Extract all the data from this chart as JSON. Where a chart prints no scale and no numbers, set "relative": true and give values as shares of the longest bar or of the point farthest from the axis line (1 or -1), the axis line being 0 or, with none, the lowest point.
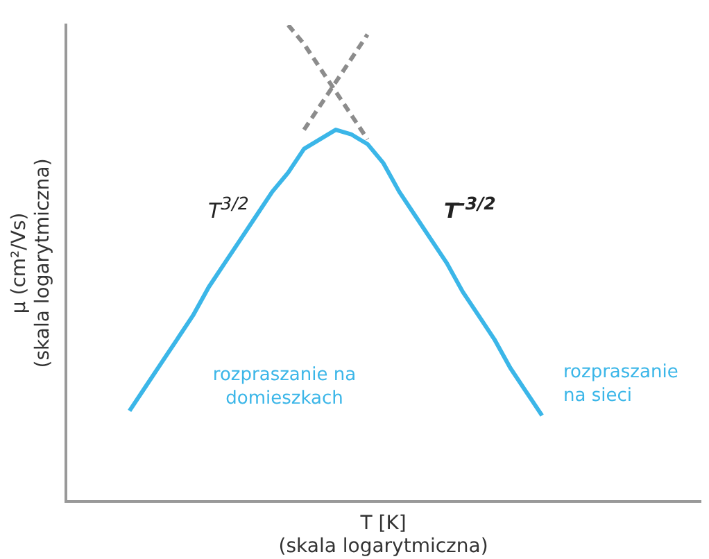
{
  "chart_data": {
    "type": "line",
    "relative": true,
    "xlabel": "T [K]\n(skala logarytmiczna)",
    "ylabel": "μ (cm²/Vs)\n(skala logarytmiczna)",
    "categories": [
      null,
      null,
      null,
      null,
      null,
      null,
      null,
      null,
      null,
      null,
      null,
      null,
      null,
      null,
      null,
      null,
      null,
      null,
      null,
      null,
      null,
      null,
      null,
      null,
      null,
      null,
      null,
      null,
      null,
      null,
      null,
      null,
      null,
      null,
      null,
      null,
      null,
      null,
      null,
      null,
      null
    ],
    "series": [
      {
        "color": "#3bb6e8",
        "line_style": "solid",
        "values": [
          null,
          null,
          null,
          null,
          0.19,
          0.24,
          0.29,
          0.34,
          0.39,
          0.45,
          0.5,
          0.55,
          0.6,
          0.65,
          0.69,
          0.74,
          0.76,
          0.78,
          0.77,
          0.75,
          0.71,
          0.65,
          0.6,
          0.55,
          0.5,
          0.44,
          0.39,
          0.34,
          0.28,
          0.23,
          0.18,
          null,
          null,
          null,
          null,
          null,
          null,
          null,
          null,
          null,
          null
        ]
      },
      {
        "color": "#8c8c8c",
        "line_style": "dashed",
        "values": [
          null,
          null,
          null,
          null,
          null,
          null,
          null,
          null,
          null,
          null,
          null,
          null,
          null,
          null,
          1.0,
          0.96,
          0.91,
          0.86,
          0.81,
          0.76,
          null,
          null,
          null,
          null,
          null,
          null,
          null,
          null,
          null,
          null,
          null,
          null,
          null,
          null,
          null,
          null,
          null,
          null,
          null,
          null,
          null
        ]
      },
      {
        "color": "#8c8c8c",
        "line_style": "dashed",
        "values": [
          null,
          null,
          null,
          null,
          null,
          null,
          null,
          null,
          null,
          null,
          null,
          null,
          null,
          null,
          null,
          0.78,
          0.83,
          0.88,
          0.93,
          0.98,
          null,
          null,
          null,
          null,
          null,
          null,
          null,
          null,
          null,
          null,
          null,
          null,
          null,
          null,
          null,
          null,
          null,
          null,
          null,
          null,
          null
        ]
      }
    ],
    "annotations": [
      "T$^{3/2}$",
      "T$^{-3/2}$",
      "rozpraszanie na domieszkach",
      "rozpraszanie na sieci"
    ],
    "grid": false,
    "legend": false,
    "marker": "none"
  }
}
